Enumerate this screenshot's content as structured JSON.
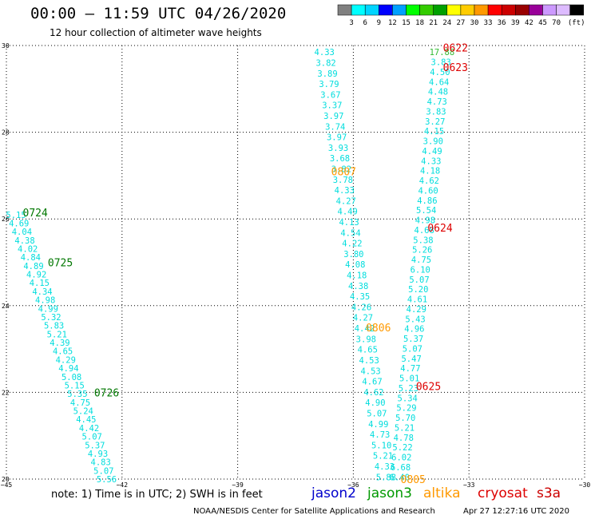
{
  "header": {
    "title": "00:00 – 11:59 UTC 04/26/2020",
    "subtitle": "12 hour collection of altimeter wave heights"
  },
  "legend": {
    "unit": "(ft)",
    "colors": [
      "#808080",
      "#00ffff",
      "#00d4ff",
      "#0000ff",
      "#00a0ff",
      "#00ff00",
      "#33cc00",
      "#00a000",
      "#ffff00",
      "#ffcc00",
      "#ff9900",
      "#ff0000",
      "#cc0000",
      "#990000",
      "#990099",
      "#cc99ff",
      "#ddbbff",
      "#000000"
    ],
    "labels": [
      "3",
      "6",
      "9",
      "12",
      "15",
      "18",
      "21",
      "24",
      "27",
      "30",
      "33",
      "36",
      "39",
      "42",
      "45",
      "70"
    ]
  },
  "footer": {
    "note": "note:  1) Time is in UTC;  2) SWH is in feet",
    "missions": [
      {
        "name": "jason2",
        "color": "#0000cc"
      },
      {
        "name": "jason3",
        "color": "#009900"
      },
      {
        "name": "altika",
        "color": "#ff9900"
      },
      {
        "name": "cryosat",
        "color": "#dd0000"
      },
      {
        "name": "s3a",
        "color": "#cc0000"
      }
    ],
    "credit": "NOAA/NESDIS Center for Satellite Applications and Research",
    "stamp": "Apr 27 12:27:16 UTC 2020"
  },
  "chart_data": {
    "type": "scatter",
    "xlim": [
      -45,
      -30
    ],
    "ylim": [
      20,
      30
    ],
    "xticks": [
      -45,
      -42,
      -39,
      -36,
      -33,
      -30
    ],
    "xtick_labels": [
      "−45",
      "−42",
      "−39",
      "−36",
      "−33",
      "−30"
    ],
    "yticks": [
      20,
      22,
      24,
      26,
      28,
      30
    ],
    "ytick_labels": [
      "20",
      "22",
      "24",
      "26",
      "28",
      "30"
    ],
    "grid": true,
    "tracks": [
      {
        "color": "#00dddd",
        "start": [
          -44.75,
          26.1
        ],
        "end": [
          -42.4,
          20.0
        ],
        "values": [
          "5.15",
          "4.69",
          "4.04",
          "4.38",
          "4.02",
          "4.84",
          "4.89",
          "4.92",
          "4.15",
          "4.34",
          "4.98",
          "4.99",
          "5.32",
          "5.83",
          "5.21",
          "4.39",
          "4.65",
          "4.29",
          "4.94",
          "5.08",
          "5.15",
          "5.35",
          "4.75",
          "5.24",
          "4.45",
          "4.42",
          "5.07",
          "5.37",
          "4.93",
          "4.83",
          "5.07",
          "5.56"
        ]
      },
      {
        "color": "#00dddd",
        "start": [
          -36.75,
          29.85
        ],
        "end": [
          -35.15,
          20.05
        ],
        "values": [
          "4.33",
          "3.82",
          "3.89",
          "3.79",
          "3.67",
          "3.37",
          "3.97",
          "3.74",
          "3.97",
          "3.93",
          "3.68",
          "3.82",
          "3.78",
          "4.33",
          "4.27",
          "4.49",
          "4.13",
          "4.54",
          "4.22",
          "3.80",
          "4.08",
          "4.18",
          "4.38",
          "4.35",
          "4.26",
          "4.27",
          "4.42",
          "3.98",
          "4.65",
          "4.53",
          "4.53",
          "4.67",
          "4.62",
          "4.90",
          "5.07",
          "4.99",
          "4.73",
          "5.10",
          "5.21",
          "4.33",
          "5.88"
        ]
      },
      {
        "color": "#00dddd",
        "start": [
          -33.7,
          29.85
        ],
        "end": [
          -34.8,
          20.05
        ],
        "values": [
          "17.88",
          "3.83",
          "4.50",
          "4.64",
          "4.48",
          "4.73",
          "3.83",
          "3.27",
          "4.15",
          "3.90",
          "4.49",
          "4.33",
          "4.18",
          "4.62",
          "4.60",
          "4.86",
          "5.54",
          "4.98",
          "4.68",
          "5.38",
          "5.26",
          "4.75",
          "6.10",
          "5.07",
          "5.20",
          "4.61",
          "4.29",
          "5.43",
          "4.96",
          "5.37",
          "5.07",
          "5.47",
          "4.77",
          "5.01",
          "5.23",
          "5.34",
          "5.29",
          "5.70",
          "5.21",
          "4.78",
          "5.22",
          "6.02",
          "6.68",
          "6.40"
        ]
      }
    ],
    "annotations": [
      {
        "text": "0724",
        "x": -44.25,
        "y": 26.15,
        "color": "#007700"
      },
      {
        "text": "0725",
        "x": -43.6,
        "y": 25.0,
        "color": "#007700"
      },
      {
        "text": "0726",
        "x": -42.4,
        "y": 22.0,
        "color": "#007700"
      },
      {
        "text": "0807",
        "x": -36.25,
        "y": 27.1,
        "color": "#ff9900"
      },
      {
        "text": "0806",
        "x": -35.35,
        "y": 23.5,
        "color": "#ff9900"
      },
      {
        "text": "0805",
        "x": -34.45,
        "y": 20.0,
        "color": "#ff9900"
      },
      {
        "text": "0622",
        "x": -33.35,
        "y": 29.95,
        "color": "#dd0000"
      },
      {
        "text": "0623",
        "x": -33.35,
        "y": 29.5,
        "color": "#dd0000"
      },
      {
        "text": "0624",
        "x": -33.75,
        "y": 25.8,
        "color": "#dd0000"
      },
      {
        "text": "0625",
        "x": -34.05,
        "y": 22.15,
        "color": "#dd0000"
      }
    ]
  }
}
